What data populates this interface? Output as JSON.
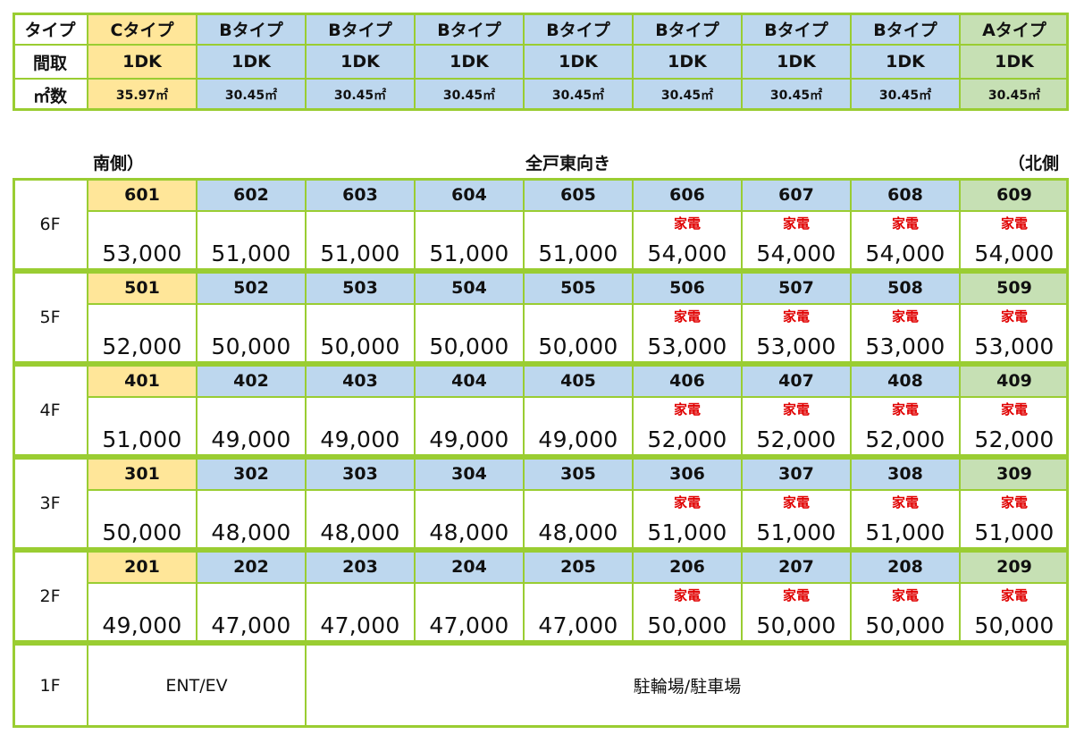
{
  "type_table": {
    "row_labels": [
      "タイプ",
      "間取",
      "㎡数"
    ],
    "columns": [
      {
        "type": "Cタイプ",
        "layout": "1DK",
        "area": "35.97㎡",
        "color": "#FFE699"
      },
      {
        "type": "Bタイプ",
        "layout": "1DK",
        "area": "30.45㎡",
        "color": "#BDD7EE"
      },
      {
        "type": "Bタイプ",
        "layout": "1DK",
        "area": "30.45㎡",
        "color": "#BDD7EE"
      },
      {
        "type": "Bタイプ",
        "layout": "1DK",
        "area": "30.45㎡",
        "color": "#BDD7EE"
      },
      {
        "type": "Bタイプ",
        "layout": "1DK",
        "area": "30.45㎡",
        "color": "#BDD7EE"
      },
      {
        "type": "Bタイプ",
        "layout": "1DK",
        "area": "30.45㎡",
        "color": "#BDD7EE"
      },
      {
        "type": "Bタイプ",
        "layout": "1DK",
        "area": "30.45㎡",
        "color": "#BDD7EE"
      },
      {
        "type": "Bタイプ",
        "layout": "1DK",
        "area": "30.45㎡",
        "color": "#BDD7EE"
      },
      {
        "type": "Aタイプ",
        "layout": "1DK",
        "area": "30.45㎡",
        "color": "#C6E0B4"
      }
    ]
  },
  "orientation": {
    "south": "南側）",
    "center": "全戸東向き",
    "north": "（北側"
  },
  "appliance_label": "家電",
  "floors": [
    {
      "floor": "6F",
      "rooms": [
        "601",
        "602",
        "603",
        "604",
        "605",
        "606",
        "607",
        "608",
        "609"
      ],
      "rents": [
        "53,000",
        "51,000",
        "51,000",
        "51,000",
        "51,000",
        "54,000",
        "54,000",
        "54,000",
        "54,000"
      ]
    },
    {
      "floor": "5F",
      "rooms": [
        "501",
        "502",
        "503",
        "504",
        "505",
        "506",
        "507",
        "508",
        "509"
      ],
      "rents": [
        "52,000",
        "50,000",
        "50,000",
        "50,000",
        "50,000",
        "53,000",
        "53,000",
        "53,000",
        "53,000"
      ]
    },
    {
      "floor": "4F",
      "rooms": [
        "401",
        "402",
        "403",
        "404",
        "405",
        "406",
        "407",
        "408",
        "409"
      ],
      "rents": [
        "51,000",
        "49,000",
        "49,000",
        "49,000",
        "49,000",
        "52,000",
        "52,000",
        "52,000",
        "52,000"
      ]
    },
    {
      "floor": "3F",
      "rooms": [
        "301",
        "302",
        "303",
        "304",
        "305",
        "306",
        "307",
        "308",
        "309"
      ],
      "rents": [
        "50,000",
        "48,000",
        "48,000",
        "48,000",
        "48,000",
        "51,000",
        "51,000",
        "51,000",
        "51,000"
      ]
    },
    {
      "floor": "2F",
      "rooms": [
        "201",
        "202",
        "203",
        "204",
        "205",
        "206",
        "207",
        "208",
        "209"
      ],
      "rents": [
        "49,000",
        "47,000",
        "47,000",
        "47,000",
        "47,000",
        "50,000",
        "50,000",
        "50,000",
        "50,000"
      ]
    }
  ],
  "appliance_columns": [
    5,
    6,
    7,
    8
  ],
  "ground_floor": {
    "floor": "1F",
    "entrance": "ENT/EV",
    "parking": "駐輪場/駐車場"
  },
  "colors": {
    "border": "#9ACD32",
    "type_c": "#FFE699",
    "type_b": "#BDD7EE",
    "type_a": "#C6E0B4",
    "appliance": "#E00000"
  }
}
